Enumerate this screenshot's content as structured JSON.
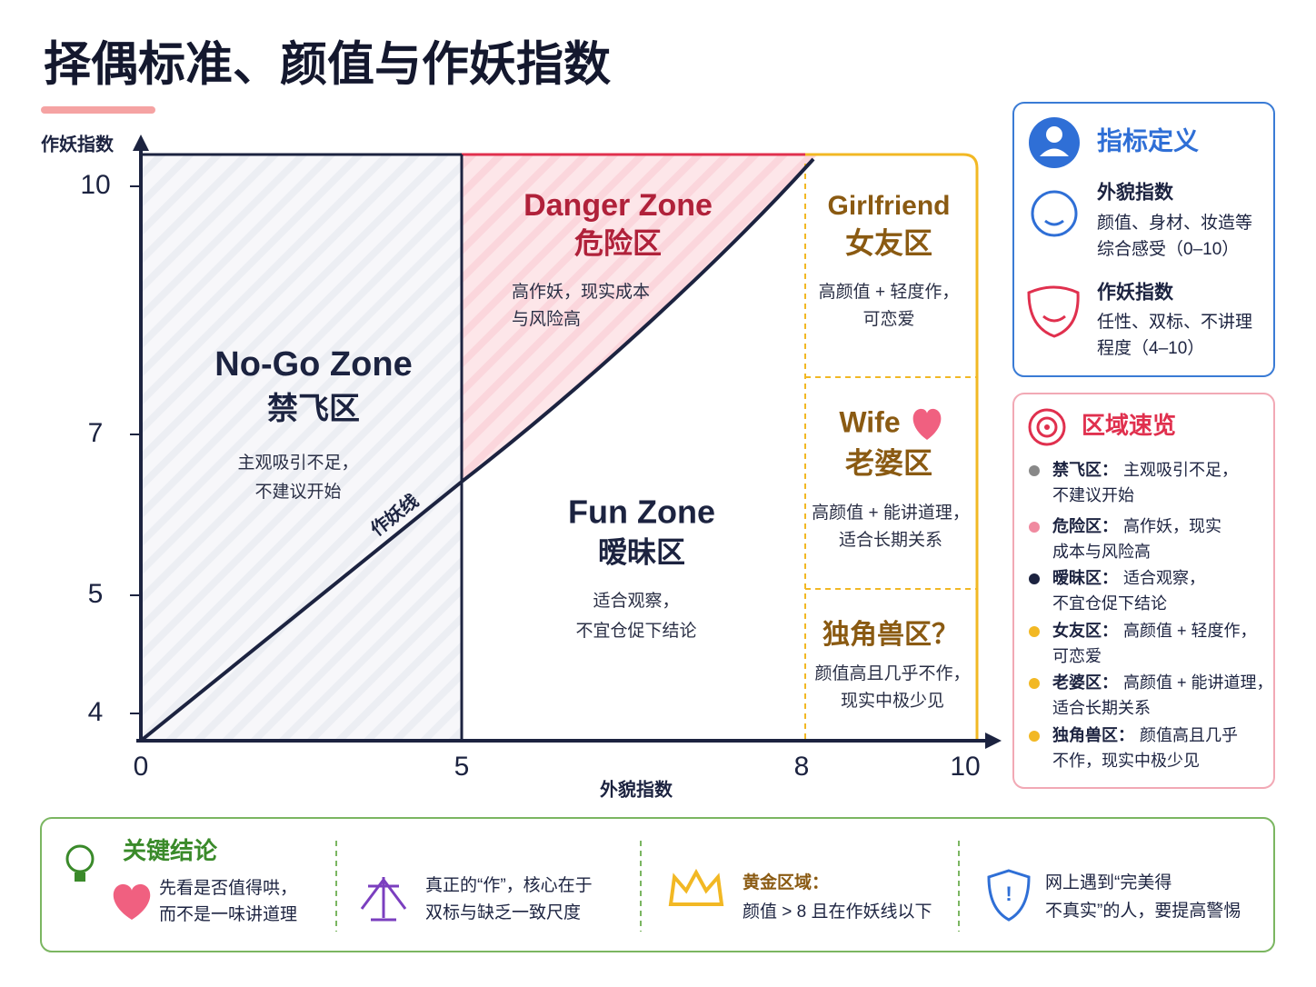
{
  "title": "择偶标准、颜值与作妖指数",
  "plot": {
    "y_label": "作妖指数",
    "x_label": "外貌指数",
    "y_ticks": [
      10,
      7,
      5,
      4
    ],
    "x_ticks": [
      0,
      5,
      8,
      10
    ],
    "line_label": "作妖线",
    "zones": [
      {
        "en": "No-Go Zone",
        "zh": "禁飞区",
        "desc": [
          "主观吸引不足，",
          "不建议开始"
        ]
      },
      {
        "en": "Danger Zone",
        "zh": "危险区",
        "desc": [
          "高作妖，现实成本",
          "与风险高"
        ]
      },
      {
        "en": "Fun Zone",
        "zh": "暧昧区",
        "desc": [
          "适合观察，",
          "不宜仓促下结论"
        ]
      },
      {
        "en": "Girlfriend",
        "zh": "女友区",
        "desc": [
          "高颜值 + 轻度作，",
          "可恋爱"
        ]
      },
      {
        "en": "Wife",
        "zh": "老婆区",
        "desc": [
          "高颜值 + 能讲道理，",
          "适合长期关系"
        ]
      },
      {
        "zh": "独角兽区？",
        "desc": [
          "颜值高且几乎不作，",
          "现实中极少见"
        ]
      }
    ]
  },
  "sidebar": {
    "definitions": {
      "title": "指标定义",
      "items": [
        {
          "name": "外貌指数",
          "desc": [
            "颜值、身材、妆造等",
            "综合感受（0–10）"
          ]
        },
        {
          "name": "作妖指数",
          "desc": [
            "任性、双标、不讲理",
            "程度（4–10）"
          ]
        }
      ]
    },
    "overview": {
      "title": "区域速览",
      "items": [
        {
          "name": "禁飞区：",
          "lines": [
            "主观吸引不足，",
            "不建议开始"
          ]
        },
        {
          "name": "危险区：",
          "lines": [
            "高作妖，现实",
            "成本与风险高"
          ]
        },
        {
          "name": "暧昧区：",
          "lines": [
            "适合观察，",
            "不宜仓促下结论"
          ]
        },
        {
          "name": "女友区：",
          "lines": [
            "高颜值 + 轻度作，",
            "可恋爱"
          ]
        },
        {
          "name": "老婆区：",
          "lines": [
            "高颜值 + 能讲道理，",
            "适合长期关系"
          ]
        },
        {
          "name": "独角兽区：",
          "lines": [
            "颜值高且几乎",
            "不作，现实中极少见"
          ]
        }
      ]
    }
  },
  "footer": [
    {
      "title": "关键结论",
      "lines": [
        "先看是否值得哄，",
        "而不是一味讲道理"
      ]
    },
    {
      "lines": [
        "真正的“作”，核心在于",
        "双标与缺乏一致尺度"
      ]
    },
    {
      "title": "黄金区域：",
      "lines": [
        "颜值 > 8 且在作妖线以下"
      ]
    },
    {
      "lines": [
        "网上遇到“完美得",
        "不真实”的人，要提高警惕"
      ]
    }
  ]
}
